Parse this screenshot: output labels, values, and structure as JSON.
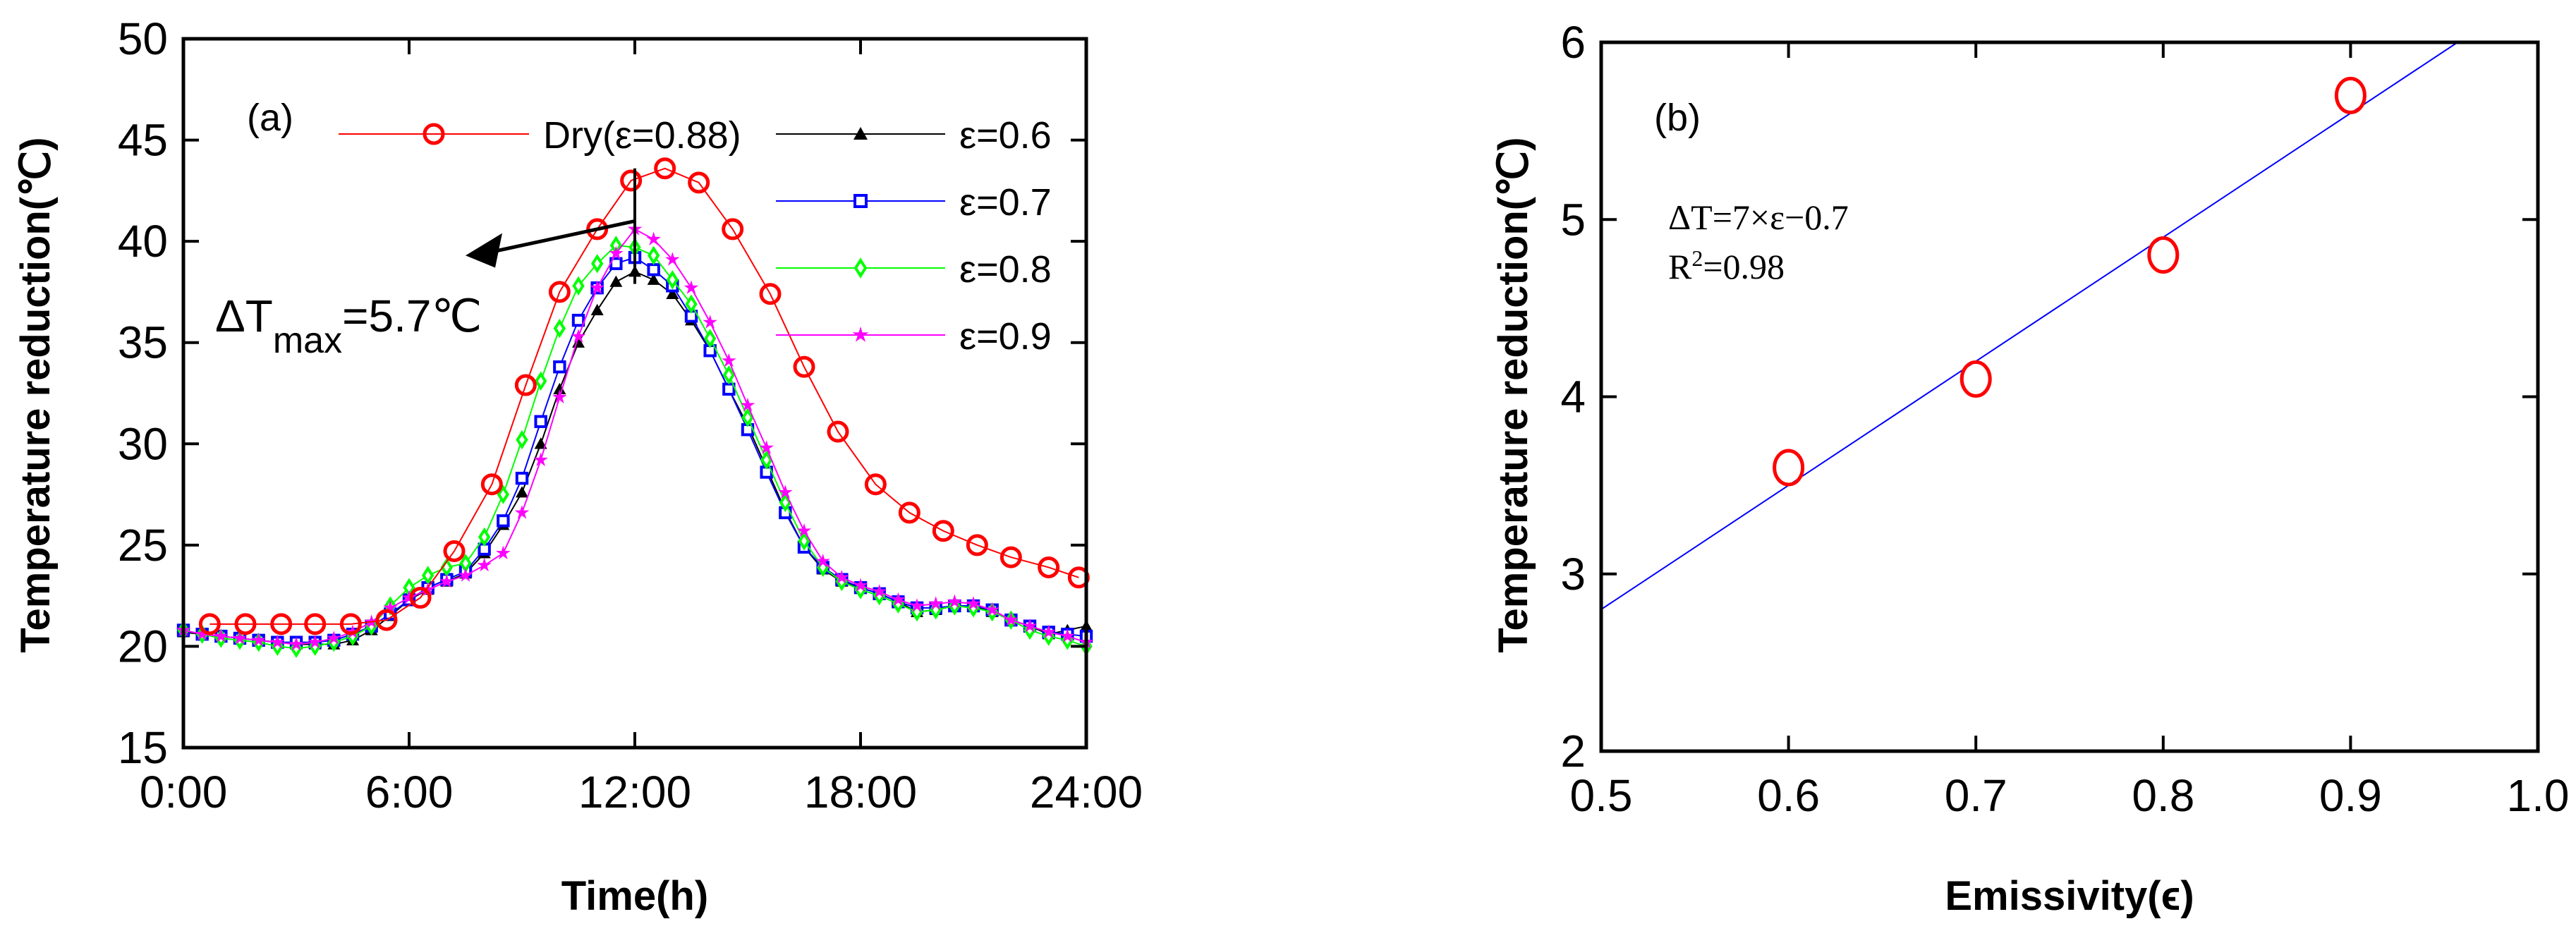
{
  "chart_data": [
    {
      "type": "line",
      "panel_label": "(a)",
      "xlabel": "Time(h)",
      "ylabel": "Temperature reduction(℃)",
      "xlim": [
        0,
        24
      ],
      "ylim": [
        15,
        50
      ],
      "xticks": [
        0,
        6,
        12,
        18,
        24
      ],
      "xtick_labels": [
        "0:00",
        "6:00",
        "12:00",
        "18:00",
        "24:00"
      ],
      "yticks": [
        15,
        20,
        25,
        30,
        35,
        40,
        45,
        50
      ],
      "ytick_labels": [
        "15",
        "20",
        "25",
        "30",
        "35",
        "40",
        "45",
        "50"
      ],
      "legend_position": "top",
      "annotation": {
        "prefix": "ΔT",
        "sub": "max",
        "suffix": "=5.7℃",
        "arrow_at_x": 12
      },
      "series": [
        {
          "name": "Dry(ε=0.88)",
          "color": "#ff0000",
          "marker": "circle",
          "x": [
            0.7,
            1.65,
            2.6,
            3.5,
            4.45,
            5.4,
            6.3,
            7.2,
            8.2,
            9.1,
            10.0,
            11.0,
            11.9,
            12.8,
            13.7,
            14.6,
            15.6,
            16.5,
            17.4,
            18.4,
            19.3,
            20.2,
            21.1,
            22.0,
            23.0,
            23.8
          ],
          "y": [
            21.1,
            21.1,
            21.1,
            21.1,
            21.1,
            21.3,
            22.4,
            24.7,
            28.0,
            32.9,
            37.5,
            40.6,
            43.0,
            43.6,
            42.9,
            40.6,
            37.4,
            33.8,
            30.6,
            28.0,
            26.6,
            25.7,
            25.0,
            24.4,
            23.9,
            23.4
          ]
        },
        {
          "name": "ε=0.6",
          "color": "#000000",
          "marker": "triangle",
          "y": [
            20.7,
            20.6,
            20.5,
            20.4,
            20.3,
            20.2,
            20.1,
            20.1,
            20.1,
            20.3,
            20.8,
            21.5,
            22.3,
            22.8,
            23.2,
            23.6,
            24.6,
            26.0,
            27.6,
            30.0,
            32.7,
            35.0,
            36.6,
            38.0,
            38.5,
            38.1,
            37.4,
            36.1,
            34.6,
            32.7,
            30.9,
            28.8,
            26.7,
            24.9,
            23.8,
            23.2,
            22.9,
            22.6,
            22.2,
            21.7,
            21.8,
            22.0,
            22.0,
            21.7,
            21.3,
            21.0,
            20.6,
            20.8,
            21.0
          ]
        },
        {
          "name": "ε=0.7",
          "color": "#0000ff",
          "marker": "square",
          "y": [
            20.8,
            20.6,
            20.5,
            20.4,
            20.3,
            20.2,
            20.2,
            20.2,
            20.3,
            20.6,
            21.0,
            21.6,
            22.3,
            22.9,
            23.3,
            23.7,
            24.8,
            26.2,
            28.3,
            31.1,
            33.8,
            36.1,
            37.7,
            38.9,
            39.2,
            38.6,
            37.8,
            36.3,
            34.6,
            32.7,
            30.7,
            28.6,
            26.6,
            24.9,
            23.9,
            23.3,
            22.9,
            22.6,
            22.2,
            21.9,
            21.9,
            22.0,
            22.0,
            21.8,
            21.3,
            21.0,
            20.7,
            20.6,
            20.5
          ]
        },
        {
          "name": "ε=0.8",
          "color": "#00ff00",
          "marker": "diamond",
          "y": [
            20.8,
            20.6,
            20.4,
            20.3,
            20.2,
            20.0,
            19.9,
            20.0,
            20.2,
            20.5,
            21.0,
            22.0,
            22.9,
            23.5,
            23.9,
            24.1,
            25.4,
            27.5,
            30.2,
            33.1,
            35.7,
            37.8,
            38.9,
            39.8,
            39.7,
            39.3,
            38.1,
            36.9,
            35.2,
            33.4,
            31.3,
            29.2,
            27.1,
            25.2,
            23.9,
            23.2,
            22.8,
            22.5,
            22.1,
            21.7,
            21.8,
            22.0,
            21.9,
            21.7,
            21.3,
            20.8,
            20.5,
            20.3,
            20.0
          ]
        },
        {
          "name": "ε=0.9",
          "color": "#ff00ff",
          "marker": "star",
          "y": [
            20.8,
            20.6,
            20.5,
            20.4,
            20.3,
            20.2,
            20.1,
            20.2,
            20.4,
            20.7,
            21.2,
            21.9,
            22.4,
            22.8,
            23.2,
            23.5,
            24.0,
            24.6,
            26.6,
            29.2,
            32.3,
            35.3,
            37.7,
            39.4,
            40.6,
            40.1,
            39.1,
            37.7,
            36.0,
            34.1,
            31.9,
            29.8,
            27.6,
            25.7,
            24.2,
            23.4,
            23.0,
            22.7,
            22.3,
            22.0,
            22.1,
            22.2,
            22.1,
            21.8,
            21.3,
            21.0,
            20.7,
            20.5,
            20.2
          ]
        }
      ],
      "shared_x_step_h": 0.5
    },
    {
      "type": "scatter",
      "panel_label": "(b)",
      "xlabel": "Emissivity(ϵ)",
      "ylabel": "Temperature reduction(℃)",
      "xlim": [
        0.5,
        1.0
      ],
      "ylim": [
        2,
        6
      ],
      "xticks": [
        0.5,
        0.6,
        0.7,
        0.8,
        0.9,
        1.0
      ],
      "xtick_labels": [
        "0.5",
        "0.6",
        "0.7",
        "0.8",
        "0.9",
        "1.0"
      ],
      "yticks": [
        2,
        3,
        4,
        5,
        6
      ],
      "ytick_labels": [
        "2",
        "3",
        "4",
        "5",
        "6"
      ],
      "points": {
        "x": [
          0.6,
          0.7,
          0.8,
          0.9
        ],
        "y": [
          3.6,
          4.1,
          4.8,
          5.7
        ],
        "color": "#ff0000"
      },
      "fit": {
        "slope": 7,
        "intercept": -0.7,
        "color": "#0000ff"
      },
      "equation": "ΔT=7×ε−0.7",
      "r2_prefix": "R",
      "r2_sup": "2",
      "r2_suffix": "=0.98"
    }
  ]
}
